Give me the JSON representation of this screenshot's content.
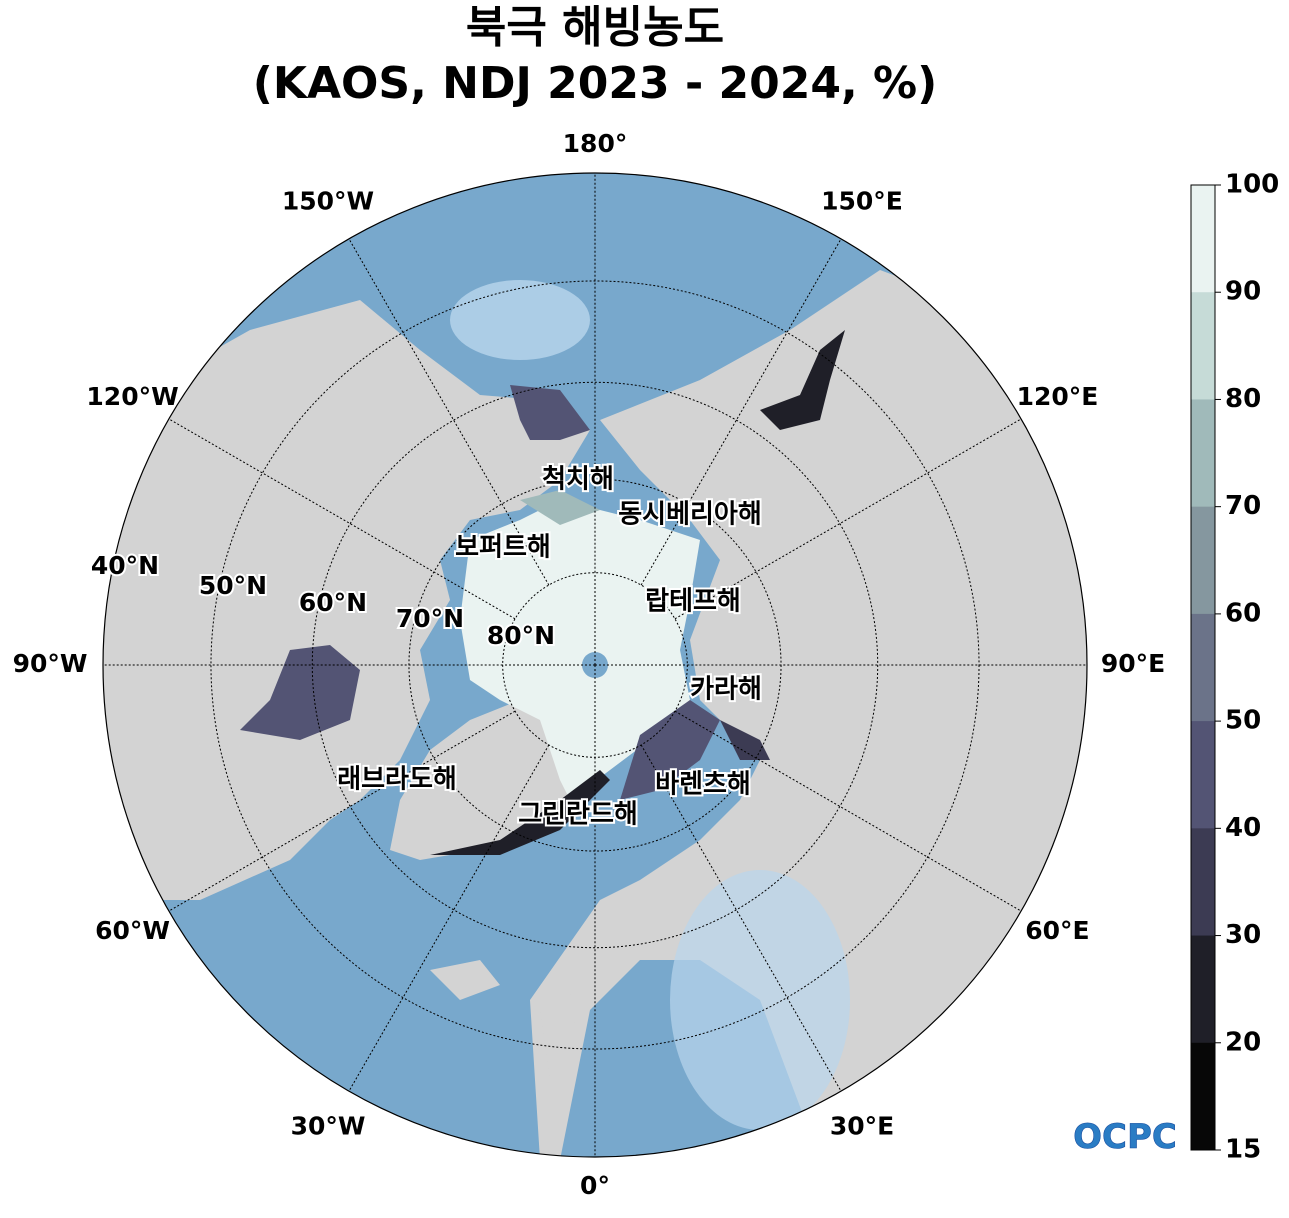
{
  "title": {
    "line1": "북극 해빙농도",
    "line2": "(KAOS, NDJ 2023 - 2024, %)"
  },
  "map": {
    "projection": "north-polar-stereographic",
    "colors": {
      "ocean": "#78a8cc",
      "ocean_light": "#b9d6ec",
      "land": "#d3d3d3",
      "lakes": "#ffffff",
      "pole_hole": "#78a8cc"
    },
    "meridian_labels": [
      {
        "lon": 180,
        "text": "180°"
      },
      {
        "lon": 150,
        "text": "150°E"
      },
      {
        "lon": 120,
        "text": "120°E"
      },
      {
        "lon": 90,
        "text": "90°E"
      },
      {
        "lon": 60,
        "text": "60°E"
      },
      {
        "lon": 30,
        "text": "30°E"
      },
      {
        "lon": 0,
        "text": "0°"
      },
      {
        "lon": -30,
        "text": "30°W"
      },
      {
        "lon": -60,
        "text": "60°W"
      },
      {
        "lon": -90,
        "text": "90°W"
      },
      {
        "lon": -120,
        "text": "120°W"
      },
      {
        "lon": -150,
        "text": "150°W"
      }
    ],
    "parallel_labels": [
      {
        "lat": 80,
        "text": "80°N"
      },
      {
        "lat": 70,
        "text": "70°N"
      },
      {
        "lat": 60,
        "text": "60°N"
      },
      {
        "lat": 50,
        "text": "50°N"
      },
      {
        "lat": 40,
        "text": "40°N"
      }
    ],
    "sea_names": [
      "척치해",
      "동시베리아해",
      "보퍼트해",
      "랍테프해",
      "카라해",
      "바렌츠해",
      "그린란드해",
      "래브라도해"
    ]
  },
  "colorbar": {
    "ticks": [
      "100",
      "90",
      "80",
      "70",
      "60",
      "50",
      "40",
      "30",
      "20",
      "15"
    ],
    "levels": [
      100,
      90,
      80,
      70,
      60,
      50,
      40,
      30,
      20,
      15
    ],
    "band_colors": [
      "#eaf3f1",
      "#c6dbd7",
      "#a0baba",
      "#85979f",
      "#6b7389",
      "#535474",
      "#3c3b53",
      "#1f1f28",
      "#070707"
    ]
  },
  "logo": {
    "text": "OCPC"
  }
}
